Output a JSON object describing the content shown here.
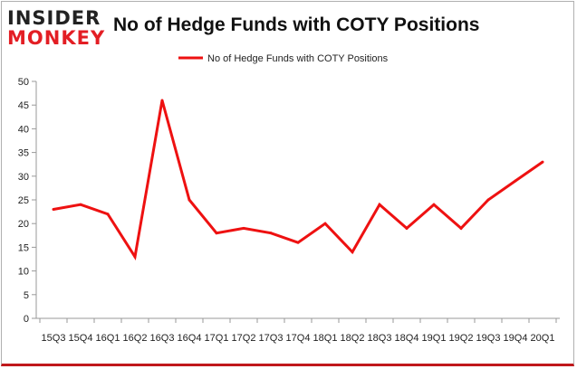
{
  "brand": {
    "logo_top": "INSIDER",
    "logo_bottom": "MONKEY",
    "accent_color": "#e31e24"
  },
  "chart_data": {
    "type": "line",
    "title": "No of Hedge Funds with COTY Positions",
    "xlabel": "",
    "ylabel": "",
    "categories": [
      "15Q3",
      "15Q4",
      "16Q1",
      "16Q2",
      "16Q3",
      "16Q4",
      "17Q1",
      "17Q2",
      "17Q3",
      "17Q4",
      "18Q1",
      "18Q2",
      "18Q3",
      "18Q4",
      "19Q1",
      "19Q2",
      "19Q3",
      "19Q4",
      "20Q1"
    ],
    "x_tick_labels": [
      "15Q3",
      "15Q4",
      "16Q1",
      "16Q2",
      "16Q3",
      "16Q4",
      "17Q1",
      "17Q2",
      "17Q3",
      "17Q4",
      "18Q1",
      "18Q2",
      "18Q3",
      "18Q4",
      "19Q1",
      "19Q2",
      "19Q3",
      "19Q4",
      "20Q1"
    ],
    "series": [
      {
        "name": "No of Hedge Funds with COTY Positions",
        "color": "#ee1111",
        "values": [
          23,
          24,
          22,
          13,
          46,
          25,
          18,
          19,
          18,
          16,
          20,
          14,
          24,
          19,
          24,
          19,
          25,
          29,
          33
        ]
      }
    ],
    "ylim": [
      0,
      50
    ],
    "yticks": [
      0,
      5,
      10,
      15,
      20,
      25,
      30,
      35,
      40,
      45,
      50
    ],
    "grid": false,
    "legend_position": "top-center"
  }
}
